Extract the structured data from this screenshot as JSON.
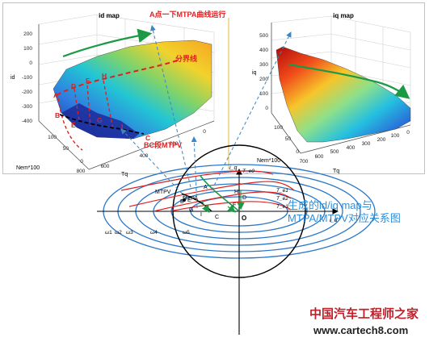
{
  "top_panel": {
    "left_plot": {
      "title": "id map",
      "z_ticks": [
        "200",
        "100",
        "0",
        "-100",
        "-200",
        "-300",
        "-400"
      ],
      "z_label": "id",
      "x_ticks": [
        "0",
        "200",
        "400",
        "600",
        "800"
      ],
      "x_label": "Tq",
      "y_ticks": [
        "100",
        "50",
        "0"
      ],
      "y_label": "Nem*100",
      "points": [
        "A",
        "B",
        "C",
        "D",
        "E",
        "F",
        "G",
        "H",
        "I"
      ],
      "ann_top": "A点一下MTPA曲线运行",
      "ann_boundary": "分界线",
      "ann_bc": "BC段MTPV"
    },
    "right_plot": {
      "title": "iq map",
      "z_ticks": [
        "500",
        "400",
        "300",
        "200",
        "100",
        "0"
      ],
      "z_label": "iq",
      "x_ticks": [
        "0",
        "100",
        "200",
        "300",
        "400",
        "500",
        "600",
        "700"
      ],
      "x_label": "Tq",
      "y_ticks": [
        "100",
        "50",
        "0"
      ],
      "y_label": "Nem*100"
    }
  },
  "bottom_diagram": {
    "axis_id": "i_d",
    "axis_iq": "i_q",
    "t_labels": [
      "T_e0",
      "T_e1",
      "T_e2",
      "T_e3"
    ],
    "curve_mtpa": "MTPA",
    "curve_mtpv": "MTPV",
    "omega_labels": [
      "ω1",
      "ω2",
      "ω3",
      "ω4",
      "ω5"
    ],
    "points": [
      "A",
      "B",
      "C",
      "D",
      "E",
      "F",
      "G",
      "H",
      "I"
    ],
    "origin": "O",
    "caption_line1": "生成的id/iq map与",
    "caption_line2": "MTPA/MTPV对应关系图"
  },
  "watermark": {
    "line1": "中国汽车工程师之家",
    "line2": "www.cartech8.com"
  },
  "colors": {
    "red": "#e02020",
    "blue_ellipse": "#2b78c8",
    "caption": "#2e8fd8",
    "frame": "#e6c25a",
    "green": "#1a9a45"
  }
}
